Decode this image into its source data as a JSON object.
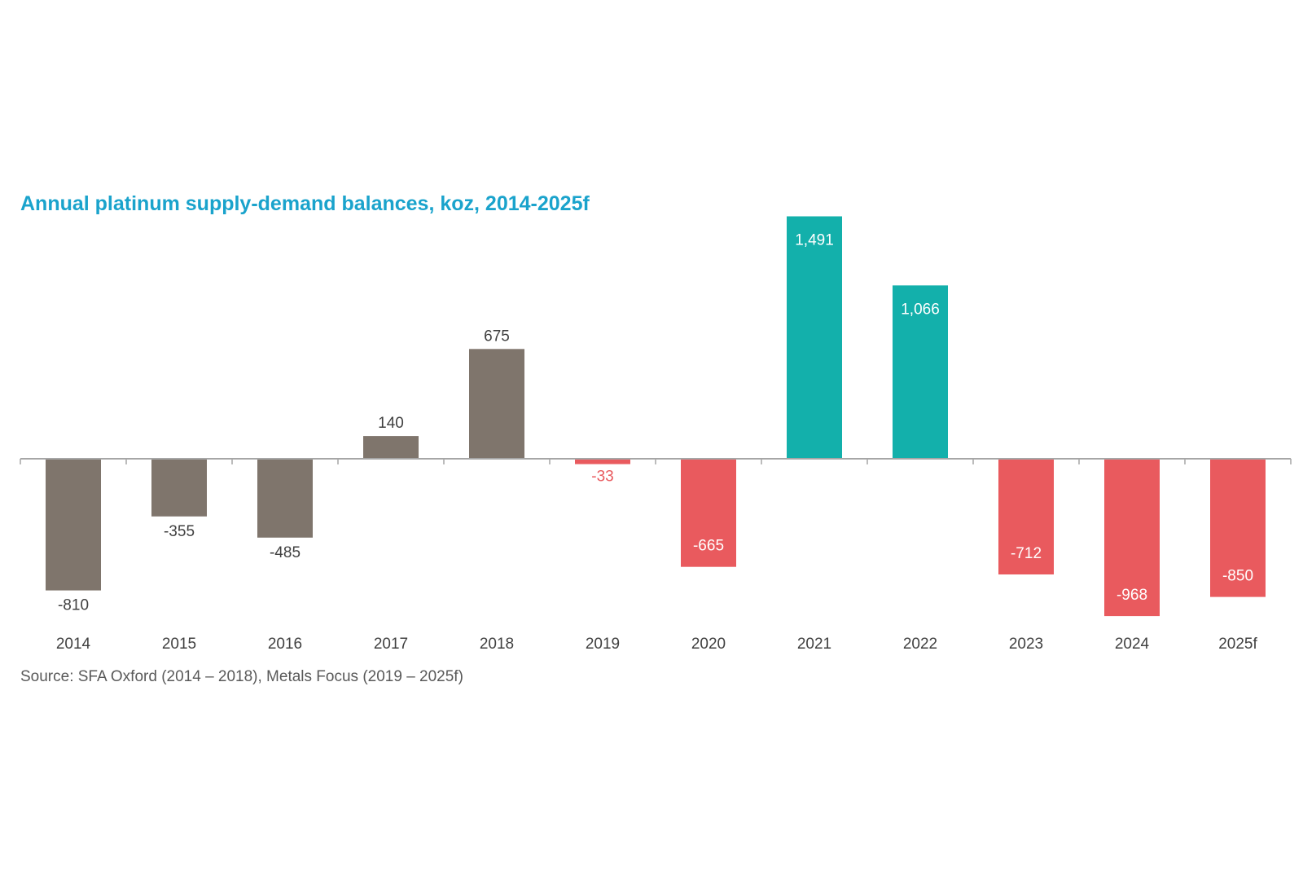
{
  "chart_data": {
    "type": "bar",
    "title": "Annual platinum supply-demand balances, koz, 2014-2025f",
    "source": "Source: SFA Oxford (2014 – 2018), Metals Focus (2019 – 2025f)",
    "categories": [
      "2014",
      "2015",
      "2016",
      "2017",
      "2018",
      "2019",
      "2020",
      "2021",
      "2022",
      "2023",
      "2024",
      "2025f"
    ],
    "values": [
      -810,
      -355,
      -485,
      140,
      675,
      -33,
      -665,
      1491,
      1066,
      -712,
      -968,
      -850
    ],
    "data_labels": [
      "-810",
      "-355",
      "-485",
      "140",
      "675",
      "-33",
      "-665",
      "1,491",
      "1,066",
      "-712",
      "-968",
      "-850"
    ],
    "bar_groups": [
      "sfa",
      "sfa",
      "sfa",
      "sfa",
      "sfa",
      "deficit",
      "deficit",
      "surplus",
      "surplus",
      "deficit",
      "deficit",
      "deficit"
    ],
    "colors": {
      "sfa": "#7f756c",
      "deficit": "#e95a5e",
      "surplus": "#13b0ab",
      "axis": "#a6a6a6",
      "label_dark": "#404040",
      "label_light": "#ffffff",
      "label_red": "#e95a5e",
      "title": "#1aa3cc"
    },
    "xlabel": "",
    "ylabel": "",
    "ylim": [
      -1000,
      1550
    ],
    "grid": false,
    "legend": "none"
  }
}
